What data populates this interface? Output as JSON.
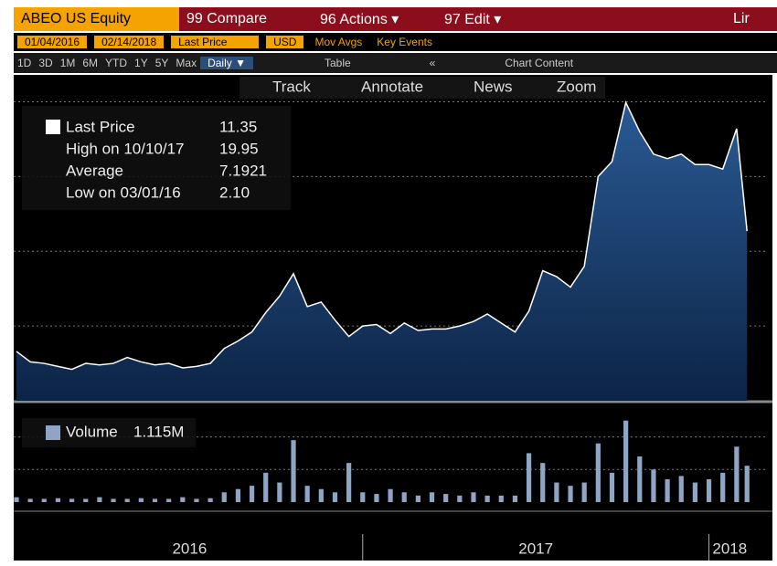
{
  "toolbar": {
    "security": "ABEO US Equity",
    "compare": "99 Compare",
    "actions": "96 Actions ▾",
    "edit": "97 Edit ▾",
    "line": "Lir",
    "start_date": "01/04/2016",
    "end_date": "02/14/2018",
    "field": "Last Price",
    "currency": "USD",
    "mov_avgs": "Mov Avgs",
    "key_events": "Key Events",
    "ranges": [
      "1D",
      "3D",
      "1M",
      "6M",
      "YTD",
      "1Y",
      "5Y",
      "Max"
    ],
    "period": "Daily ▼",
    "table": "Table",
    "collapse": "«",
    "chart_content": "Chart Content",
    "tools": [
      "Track",
      "Annotate",
      "News",
      "Zoom"
    ]
  },
  "chart_data": [
    {
      "type": "area",
      "color": "#ffffff",
      "fill": "#1d4577",
      "legend": [
        {
          "label": "Last Price",
          "value": "11.35"
        },
        {
          "label": "High on 10/10/17",
          "value": "19.95"
        },
        {
          "label": "Average",
          "value": "7.1921"
        },
        {
          "label": "Low on 03/01/16",
          "value": "2.10"
        }
      ],
      "x": [
        2016,
        2016.04,
        2016.08,
        2016.12,
        2016.16,
        2016.2,
        2016.24,
        2016.28,
        2016.32,
        2016.36,
        2016.4,
        2016.44,
        2016.48,
        2016.52,
        2016.56,
        2016.6,
        2016.64,
        2016.68,
        2016.72,
        2016.76,
        2016.8,
        2016.84,
        2016.88,
        2016.92,
        2016.96,
        2017,
        2017.04,
        2017.08,
        2017.12,
        2017.16,
        2017.2,
        2017.24,
        2017.28,
        2017.32,
        2017.36,
        2017.4,
        2017.44,
        2017.48,
        2017.52,
        2017.56,
        2017.6,
        2017.64,
        2017.68,
        2017.72,
        2017.76,
        2017.8,
        2017.84,
        2017.88,
        2017.92,
        2017.96,
        2018,
        2018.04,
        2018.08,
        2018.11
      ],
      "values": [
        3.3,
        2.6,
        2.5,
        2.3,
        2.1,
        2.5,
        2.4,
        2.5,
        2.9,
        2.6,
        2.4,
        2.5,
        2.2,
        2.3,
        2.5,
        3.5,
        4.0,
        4.6,
        5.9,
        7.0,
        8.5,
        6.3,
        6.6,
        5.4,
        4.3,
        5.0,
        5.1,
        4.5,
        5.2,
        4.7,
        4.8,
        4.8,
        5.0,
        5.3,
        5.8,
        5.2,
        4.6,
        6.0,
        8.7,
        8.3,
        7.6,
        9.0,
        15.0,
        16.0,
        19.95,
        18.0,
        16.5,
        16.2,
        16.5,
        15.8,
        15.8,
        15.5,
        18.2,
        11.35
      ],
      "xlim": [
        2016,
        2018.12
      ],
      "ylim": [
        0,
        21.8
      ],
      "yticks": [
        5,
        10,
        15,
        20
      ],
      "grid": true
    },
    {
      "type": "bar",
      "color": "#8ea5c6",
      "legend": {
        "label": "Volume",
        "value": "1.115M"
      },
      "x": [
        2016,
        2016.04,
        2016.08,
        2016.12,
        2016.16,
        2016.2,
        2016.24,
        2016.28,
        2016.32,
        2016.36,
        2016.4,
        2016.44,
        2016.48,
        2016.52,
        2016.56,
        2016.6,
        2016.64,
        2016.68,
        2016.72,
        2016.76,
        2016.8,
        2016.84,
        2016.88,
        2016.92,
        2016.96,
        2017,
        2017.04,
        2017.08,
        2017.12,
        2017.16,
        2017.2,
        2017.24,
        2017.28,
        2017.32,
        2017.36,
        2017.4,
        2017.44,
        2017.48,
        2017.52,
        2017.56,
        2017.6,
        2017.64,
        2017.68,
        2017.72,
        2017.76,
        2017.8,
        2017.84,
        2017.88,
        2017.92,
        2017.96,
        2018,
        2018.04,
        2018.08,
        2018.11
      ],
      "values": [
        0.15,
        0.1,
        0.1,
        0.12,
        0.1,
        0.1,
        0.15,
        0.1,
        0.1,
        0.12,
        0.1,
        0.1,
        0.15,
        0.1,
        0.12,
        0.3,
        0.4,
        0.5,
        0.9,
        0.6,
        1.9,
        0.5,
        0.4,
        0.3,
        1.2,
        0.3,
        0.25,
        0.4,
        0.3,
        0.2,
        0.3,
        0.25,
        0.2,
        0.3,
        0.2,
        0.2,
        0.2,
        1.5,
        1.2,
        0.6,
        0.5,
        0.6,
        1.8,
        0.9,
        2.5,
        1.4,
        1.0,
        0.7,
        0.8,
        0.6,
        0.7,
        0.9,
        1.7,
        1.115
      ],
      "xlim": [
        2016,
        2018.12
      ],
      "ylim": [
        0,
        2.8
      ],
      "yticks": [
        1,
        2
      ],
      "grid": true,
      "xticks": [
        {
          "value": 2016,
          "label": "2016"
        },
        {
          "value": 2017,
          "label": "2017"
        },
        {
          "value": 2018,
          "label": "2018"
        }
      ]
    }
  ]
}
